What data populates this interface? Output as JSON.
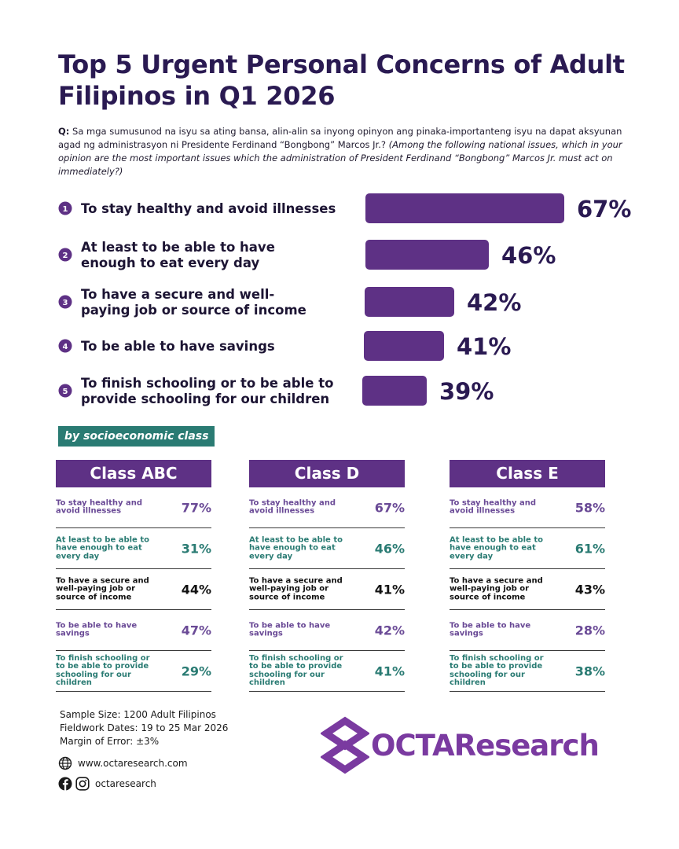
{
  "title": "Top 5 Urgent Personal Concerns of Adult Filipinos in Q1 2026",
  "question": {
    "label": "Q:",
    "filipino": "Sa mga sumusunod na isyu sa ating bansa, alin-alin sa inyong opinyon ang pinaka-importanteng isyu na dapat aksyunan agad ng administrasyon ni Presidente Ferdinand “Bongbong” Marcos Jr.?",
    "english": "(Among the following national issues, which in your opinion are the most important issues which the administration of President Ferdinand “Bongbong” Marcos Jr. must act on immediately?)"
  },
  "chart_data": [
    {
      "type": "bar",
      "orientation": "horizontal",
      "categories": [
        "To stay healthy and avoid illnesses",
        "At least to be able to have enough to eat every day",
        "To have a secure and well-paying job or source of income",
        "To be able to have savings",
        "To finish schooling or to be able to provide schooling for our children"
      ],
      "ranks": [
        "1",
        "2",
        "3",
        "4",
        "5"
      ],
      "values": [
        67,
        46,
        42,
        41,
        39
      ],
      "value_labels": [
        "67%",
        "46%",
        "42%",
        "41%",
        "39%"
      ],
      "unit": "%",
      "grid": false,
      "legend": "none",
      "bar_color": "#5e3185"
    },
    {
      "type": "table",
      "section_label": "by socioeconomic class",
      "classes": [
        {
          "name": "Class ABC",
          "rows": [
            {
              "label": "To stay healthy and avoid illnesses",
              "value": "77%"
            },
            {
              "label": "At least to be able to have enough to eat every day",
              "value": "31%"
            },
            {
              "label": "To have a secure and well-paying job or source of income",
              "value": "44%"
            },
            {
              "label": "To be able to have savings",
              "value": "47%"
            },
            {
              "label": "To finish schooling or to be able to provide schooling for our children",
              "value": "29%"
            }
          ]
        },
        {
          "name": "Class D",
          "rows": [
            {
              "label": "To stay healthy and avoid illnesses",
              "value": "67%"
            },
            {
              "label": "At least to be able to have enough to eat every day",
              "value": "46%"
            },
            {
              "label": "To have a secure and well-paying job or source of income",
              "value": "41%"
            },
            {
              "label": "To be able to have savings",
              "value": "42%"
            },
            {
              "label": "To finish schooling or to be able to provide schooling for our children",
              "value": "41%"
            }
          ]
        },
        {
          "name": "Class E",
          "rows": [
            {
              "label": "To stay healthy and avoid illnesses",
              "value": "58%"
            },
            {
              "label": "At least to be able to have enough to eat every day",
              "value": "61%"
            },
            {
              "label": "To have a secure and well-paying job or source of income",
              "value": "43%"
            },
            {
              "label": "To be able to have savings",
              "value": "28%"
            },
            {
              "label": "To finish schooling or to be able to provide schooling for our children",
              "value": "38%"
            }
          ]
        }
      ],
      "row_colors": [
        "#6a4a96",
        "#2a7b73",
        "#111111",
        "#6a4a96",
        "#2a7b73"
      ]
    }
  ],
  "footer": {
    "sample_size": "Sample Size: 1200 Adult Filipinos",
    "fieldwork": "Fieldwork Dates: 19 to 25 Mar 2026",
    "margin": "Margin of Error: ±3%",
    "website": "www.octaresearch.com",
    "social": "octaresearch"
  },
  "icons": {
    "web": "globe-icon",
    "facebook": "facebook-icon",
    "instagram": "instagram-icon",
    "logo": "octa-logo-icon"
  },
  "logo": {
    "text": "OCTAResearch",
    "color": "#7a3aa0"
  },
  "colors": {
    "purple": "#5e3185",
    "dark_title": "#2a1a52",
    "teal": "#2a7b73"
  }
}
